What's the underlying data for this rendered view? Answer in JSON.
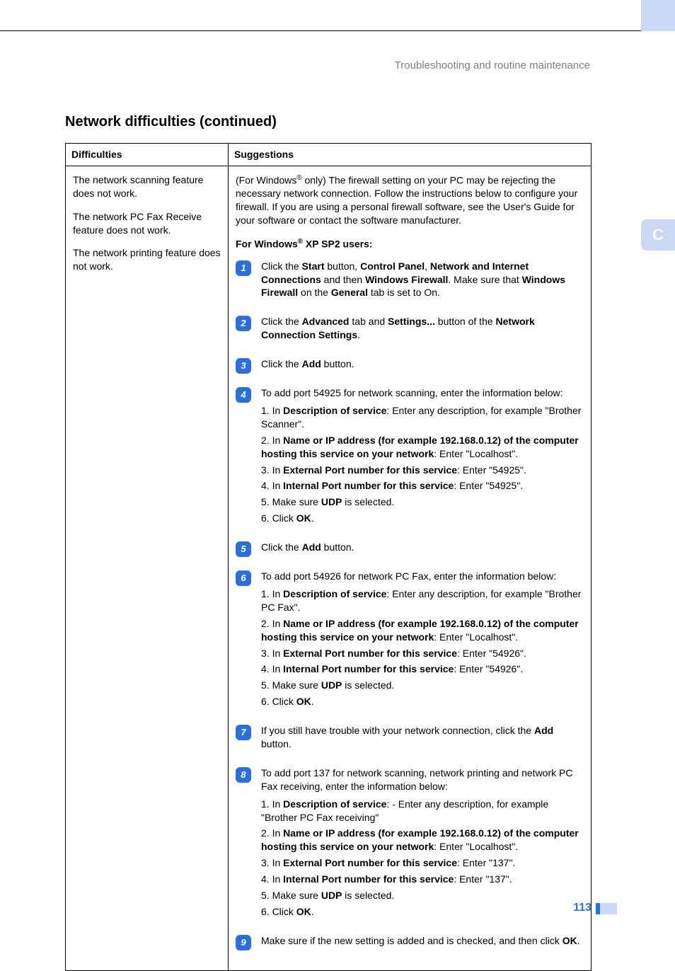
{
  "colors": {
    "accent_blue": "#2b6fdb",
    "tab_bg": "#c9d8f5",
    "breadcrumb": "#7f7f7f",
    "border": "#000000"
  },
  "header": {
    "breadcrumb": "Troubleshooting and routine maintenance"
  },
  "section_tab": "C",
  "section_title": "Network difficulties (continued)",
  "table": {
    "columns": [
      "Difficulties",
      "Suggestions"
    ],
    "difficulties": [
      "The network scanning feature does not work.",
      "The network PC Fax Receive feature does not work.",
      "The network printing feature does not work."
    ],
    "suggestions": {
      "intro_pre": "(For Windows",
      "intro_post": " only) The firewall setting on your PC may be rejecting the necessary network connection. Follow the instructions below to configure your firewall. If you are using a personal firewall software, see the User's Guide for your software or contact the software manufacturer.",
      "subhead_pre": "For Windows",
      "subhead_post": " XP SP2 users:",
      "steps": [
        {
          "n": "1",
          "lines": [
            "Click the <b>Start</b> button, <b>Control Panel</b>, <b>Network and Internet Connections</b>  and then <b>Windows Firewall</b>. Make sure that <b>Windows Firewall</b> on the <b>General</b> tab is set to On."
          ]
        },
        {
          "n": "2",
          "lines": [
            "Click the <b>Advanced</b> tab and <b>Settings...</b> button of the <b>Network Connection Settings</b>."
          ]
        },
        {
          "n": "3",
          "lines": [
            "Click the <b>Add</b> button."
          ]
        },
        {
          "n": "4",
          "lines": [
            "To add port 54925 for network scanning, enter the information below:",
            "1. In <b>Description of service</b>: Enter any description, for example \"Brother Scanner\".",
            "2. In <b>Name or IP address (for example 192.168.0.12) of the computer hosting this service on your network</b>: Enter \"Localhost\".",
            "3. In <b>External Port number for this service</b>: Enter \"54925\".",
            "4. In <b>Internal Port number for this service</b>: Enter \"54925\".",
            "5. Make sure <b>UDP</b> is selected.",
            "6. Click <b>OK</b>."
          ]
        },
        {
          "n": "5",
          "lines": [
            "Click the <b>Add</b> button."
          ]
        },
        {
          "n": "6",
          "lines": [
            "To add port 54926 for network PC Fax, enter the information below:",
            "1. In <b>Description of service</b>: Enter any description, for example \"Brother PC Fax\".",
            "2. In <b>Name or IP address (for example 192.168.0.12) of the computer hosting this service on your network</b>: Enter \"Localhost\".",
            "3. In <b>External Port number for this service</b>: Enter \"54926\".",
            "4. In <b>Internal Port number for this service</b>: Enter \"54926\".",
            "5. Make sure <b>UDP</b> is selected.",
            "6. Click <b>OK</b>."
          ]
        },
        {
          "n": "7",
          "lines": [
            "If you still have trouble with your network connection, click the <b>Add</b> button."
          ]
        },
        {
          "n": "8",
          "lines": [
            "To add port 137 for network scanning, network printing and network PC Fax receiving, enter the information below:",
            "1. In <b>Description of service</b>: - Enter any description, for example \"Brother PC Fax receiving\"",
            "2. In <b>Name or IP address (for example 192.168.0.12) of the computer hosting this service on your network</b>: Enter \"Localhost\".",
            "3. In <b>External Port number for this service</b>: Enter \"137\".",
            "4. In <b>Internal Port number for this service</b>: Enter \"137\".",
            "5. Make sure <b>UDP</b> is selected.",
            "6. Click <b>OK</b>."
          ]
        },
        {
          "n": "9",
          "lines": [
            "Make sure if the new setting is added and is checked, and then click <b>OK</b>."
          ]
        }
      ]
    }
  },
  "footer": {
    "page_number": "113"
  }
}
